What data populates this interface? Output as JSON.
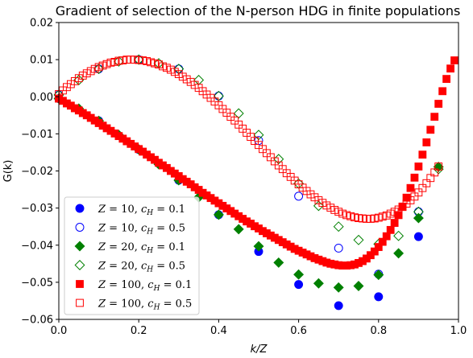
{
  "chart_data": {
    "type": "scatter",
    "title": "Gradient of selection of the N-person HDG in finite populations",
    "xlabel": "k/Z",
    "ylabel": "G(k)",
    "xlim": [
      0.0,
      1.0
    ],
    "ylim": [
      -0.06,
      0.02
    ],
    "xticks": [
      "0.0",
      "0.2",
      "0.4",
      "0.6",
      "0.8",
      "1.0"
    ],
    "yticks": [
      "0.02",
      "0.01",
      "0.00",
      "−0.01",
      "−0.02",
      "−0.03",
      "−0.04",
      "−0.05",
      "−0.06"
    ],
    "grid": false,
    "legend_position": "lower-left",
    "series": [
      {
        "name": "Z = 10, cH = 0.1",
        "legend_html": "Z = 10, c_H = 0.1",
        "marker": "circle",
        "filled": true,
        "color": "#0000ff",
        "x": [
          0.0,
          0.1,
          0.2,
          0.3,
          0.4,
          0.5,
          0.6,
          0.7,
          0.8,
          0.9
        ],
        "y": [
          -0.0005,
          -0.0065,
          -0.0142,
          -0.0225,
          -0.0318,
          -0.0417,
          -0.0506,
          -0.0563,
          -0.0539,
          -0.0377
        ]
      },
      {
        "name": "Z = 10, cH = 0.5",
        "marker": "circle",
        "filled": false,
        "color": "#0000ff",
        "x": [
          0.0,
          0.1,
          0.2,
          0.3,
          0.4,
          0.5,
          0.6,
          0.7,
          0.8,
          0.9
        ],
        "y": [
          0.0005,
          0.0075,
          0.01,
          0.0075,
          0.0002,
          -0.0118,
          -0.0268,
          -0.0408,
          -0.0478,
          -0.031
        ]
      },
      {
        "name": "Z = 20, cH = 0.1",
        "marker": "diamond",
        "filled": true,
        "color": "#008000",
        "x": [
          0.0,
          0.05,
          0.1,
          0.15,
          0.2,
          0.25,
          0.3,
          0.35,
          0.4,
          0.45,
          0.5,
          0.55,
          0.6,
          0.65,
          0.7,
          0.75,
          0.8,
          0.85,
          0.9,
          0.95
        ],
        "y": [
          -0.0005,
          -0.0032,
          -0.0065,
          -0.0103,
          -0.0142,
          -0.0182,
          -0.0225,
          -0.0271,
          -0.0318,
          -0.0357,
          -0.0403,
          -0.0447,
          -0.0479,
          -0.0503,
          -0.0514,
          -0.051,
          -0.048,
          -0.0422,
          -0.0327,
          -0.0189
        ]
      },
      {
        "name": "Z = 20, cH = 0.5",
        "marker": "diamond",
        "filled": false,
        "color": "#008000",
        "x": [
          0.0,
          0.05,
          0.1,
          0.15,
          0.2,
          0.25,
          0.3,
          0.35,
          0.4,
          0.45,
          0.5,
          0.55,
          0.6,
          0.65,
          0.7,
          0.75,
          0.8,
          0.85,
          0.9,
          0.95
        ],
        "y": [
          0.0005,
          0.0045,
          0.0075,
          0.0095,
          0.01,
          0.009,
          0.0075,
          0.0045,
          0.0002,
          -0.0045,
          -0.0103,
          -0.0168,
          -0.0234,
          -0.0294,
          -0.035,
          -0.0386,
          -0.0397,
          -0.0375,
          -0.031,
          -0.0195
        ]
      },
      {
        "name": "Z = 100, cH = 0.1",
        "marker": "square",
        "filled": true,
        "color": "#ff0000",
        "x": [
          0.0,
          0.01,
          0.02,
          0.03,
          0.04,
          0.05,
          0.06,
          0.07,
          0.08,
          0.09,
          0.1,
          0.11,
          0.12,
          0.13,
          0.14,
          0.15,
          0.16,
          0.17,
          0.18,
          0.19,
          0.2,
          0.21,
          0.22,
          0.23,
          0.24,
          0.25,
          0.26,
          0.27,
          0.28,
          0.29,
          0.3,
          0.31,
          0.32,
          0.33,
          0.34,
          0.35,
          0.36,
          0.37,
          0.38,
          0.39,
          0.4,
          0.41,
          0.42,
          0.43,
          0.44,
          0.45,
          0.46,
          0.47,
          0.48,
          0.49,
          0.5,
          0.51,
          0.52,
          0.53,
          0.54,
          0.55,
          0.56,
          0.57,
          0.58,
          0.59,
          0.6,
          0.61,
          0.62,
          0.63,
          0.64,
          0.65,
          0.66,
          0.67,
          0.68,
          0.69,
          0.7,
          0.71,
          0.72,
          0.73,
          0.74,
          0.75,
          0.76,
          0.77,
          0.78,
          0.79,
          0.8,
          0.81,
          0.82,
          0.83,
          0.84,
          0.85,
          0.86,
          0.87,
          0.88,
          0.89,
          0.9,
          0.91,
          0.92,
          0.93,
          0.94,
          0.95,
          0.96,
          0.97,
          0.98,
          0.99
        ],
        "y": [
          -0.0005,
          -0.0011,
          -0.0018,
          -0.0024,
          -0.0031,
          -0.0037,
          -0.0044,
          -0.005,
          -0.0057,
          -0.0064,
          -0.0071,
          -0.0078,
          -0.0085,
          -0.0092,
          -0.0099,
          -0.0106,
          -0.0113,
          -0.012,
          -0.0127,
          -0.0134,
          -0.0141,
          -0.0148,
          -0.0156,
          -0.0163,
          -0.017,
          -0.0178,
          -0.0185,
          -0.0192,
          -0.02,
          -0.0207,
          -0.0214,
          -0.0222,
          -0.0229,
          -0.0236,
          -0.0244,
          -0.0251,
          -0.0259,
          -0.0266,
          -0.0273,
          -0.028,
          -0.0287,
          -0.0294,
          -0.0301,
          -0.0308,
          -0.0315,
          -0.0322,
          -0.0329,
          -0.0336,
          -0.0342,
          -0.0349,
          -0.0355,
          -0.0362,
          -0.0368,
          -0.0374,
          -0.038,
          -0.0386,
          -0.0392,
          -0.0398,
          -0.0404,
          -0.041,
          -0.0415,
          -0.042,
          -0.0425,
          -0.043,
          -0.0435,
          -0.0439,
          -0.0443,
          -0.0447,
          -0.045,
          -0.0452,
          -0.0454,
          -0.0455,
          -0.0455,
          -0.0454,
          -0.0452,
          -0.0448,
          -0.0443,
          -0.0436,
          -0.0427,
          -0.0417,
          -0.0405,
          -0.0391,
          -0.0376,
          -0.0359,
          -0.034,
          -0.0319,
          -0.0297,
          -0.0272,
          -0.0246,
          -0.0218,
          -0.0188,
          -0.0156,
          -0.0123,
          -0.0089,
          -0.0054,
          -0.0019,
          0.0015,
          0.0048,
          0.0076,
          0.0098
        ]
      },
      {
        "name": "Z = 100, cH = 0.5",
        "marker": "square",
        "filled": false,
        "color": "#ff0000",
        "x": [
          0.0,
          0.01,
          0.02,
          0.03,
          0.04,
          0.05,
          0.06,
          0.07,
          0.08,
          0.09,
          0.1,
          0.11,
          0.12,
          0.13,
          0.14,
          0.15,
          0.16,
          0.17,
          0.18,
          0.19,
          0.2,
          0.21,
          0.22,
          0.23,
          0.24,
          0.25,
          0.26,
          0.27,
          0.28,
          0.29,
          0.3,
          0.31,
          0.32,
          0.33,
          0.34,
          0.35,
          0.36,
          0.37,
          0.38,
          0.39,
          0.4,
          0.41,
          0.42,
          0.43,
          0.44,
          0.45,
          0.46,
          0.47,
          0.48,
          0.49,
          0.5,
          0.51,
          0.52,
          0.53,
          0.54,
          0.55,
          0.56,
          0.57,
          0.58,
          0.59,
          0.6,
          0.61,
          0.62,
          0.63,
          0.64,
          0.65,
          0.66,
          0.67,
          0.68,
          0.69,
          0.7,
          0.71,
          0.72,
          0.73,
          0.74,
          0.75,
          0.76,
          0.77,
          0.78,
          0.79,
          0.8,
          0.81,
          0.82,
          0.83,
          0.84,
          0.85,
          0.86,
          0.87,
          0.88,
          0.89,
          0.9,
          0.91,
          0.92,
          0.93,
          0.94,
          0.95
        ],
        "y": [
          0.0007,
          0.0017,
          0.0026,
          0.0034,
          0.0042,
          0.005,
          0.0057,
          0.0063,
          0.0069,
          0.0075,
          0.008,
          0.0084,
          0.0088,
          0.0092,
          0.0094,
          0.0097,
          0.0098,
          0.01,
          0.01,
          0.01,
          0.0099,
          0.0098,
          0.0096,
          0.0093,
          0.009,
          0.0087,
          0.0082,
          0.0078,
          0.0073,
          0.0067,
          0.0061,
          0.0054,
          0.0047,
          0.004,
          0.0032,
          0.0024,
          0.0015,
          0.0006,
          -0.0003,
          -0.0013,
          -0.0023,
          -0.0033,
          -0.0043,
          -0.0054,
          -0.0064,
          -0.0075,
          -0.0086,
          -0.0097,
          -0.0108,
          -0.0119,
          -0.013,
          -0.0141,
          -0.0152,
          -0.0163,
          -0.0174,
          -0.0185,
          -0.0195,
          -0.0206,
          -0.0216,
          -0.0226,
          -0.0236,
          -0.0245,
          -0.0254,
          -0.0263,
          -0.0271,
          -0.0279,
          -0.0286,
          -0.0293,
          -0.0299,
          -0.0305,
          -0.031,
          -0.0315,
          -0.0319,
          -0.0322,
          -0.0325,
          -0.0327,
          -0.0328,
          -0.0329,
          -0.0329,
          -0.0328,
          -0.0326,
          -0.0323,
          -0.032,
          -0.0315,
          -0.031,
          -0.0304,
          -0.0296,
          -0.0288,
          -0.0279,
          -0.0269,
          -0.0258,
          -0.0246,
          -0.0233,
          -0.0219,
          -0.0204,
          -0.0188
        ]
      }
    ]
  }
}
